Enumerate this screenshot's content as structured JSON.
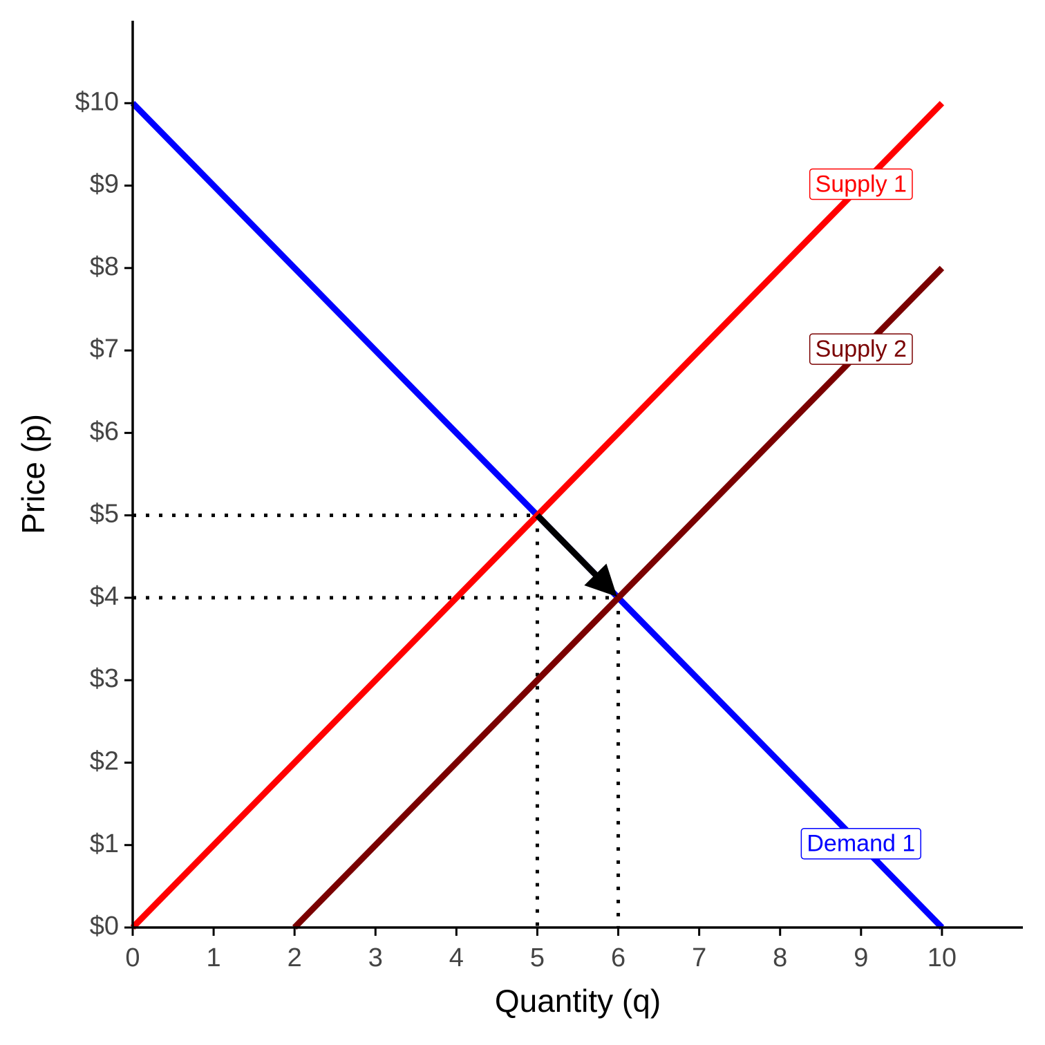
{
  "chart_data": {
    "type": "line",
    "xlabel": "Quantity (q)",
    "ylabel": "Price (p)",
    "xlim": [
      0,
      11
    ],
    "ylim": [
      0,
      11
    ],
    "xticks": [
      0,
      1,
      2,
      3,
      4,
      5,
      6,
      7,
      8,
      9,
      10
    ],
    "yticks": [
      {
        "value": 0,
        "label": "$0"
      },
      {
        "value": 1,
        "label": "$1"
      },
      {
        "value": 2,
        "label": "$2"
      },
      {
        "value": 3,
        "label": "$3"
      },
      {
        "value": 4,
        "label": "$4"
      },
      {
        "value": 5,
        "label": "$5"
      },
      {
        "value": 6,
        "label": "$6"
      },
      {
        "value": 7,
        "label": "$7"
      },
      {
        "value": 8,
        "label": "$8"
      },
      {
        "value": 9,
        "label": "$9"
      },
      {
        "value": 10,
        "label": "$10"
      }
    ],
    "series": [
      {
        "name": "Demand 1",
        "color": "#0000ff",
        "x": [
          0,
          10
        ],
        "values": [
          10,
          0
        ]
      },
      {
        "name": "Supply 1",
        "color": "#ff0000",
        "x": [
          0,
          10
        ],
        "values": [
          0,
          10
        ]
      },
      {
        "name": "Supply 2",
        "color": "#7a0000",
        "x": [
          2,
          10
        ],
        "values": [
          0,
          8
        ]
      }
    ],
    "label_positions": [
      {
        "x": 9,
        "y": 1
      },
      {
        "x": 9,
        "y": 9
      },
      {
        "x": 9,
        "y": 7
      }
    ],
    "guides": [
      {
        "x": [
          0,
          5
        ],
        "y": [
          5,
          5
        ]
      },
      {
        "x": [
          5,
          5
        ],
        "y": [
          5,
          0
        ]
      },
      {
        "x": [
          0,
          6
        ],
        "y": [
          4,
          4
        ]
      },
      {
        "x": [
          6,
          6
        ],
        "y": [
          4,
          0
        ]
      }
    ],
    "arrow": {
      "x": [
        5,
        6
      ],
      "y": [
        5,
        4
      ]
    }
  }
}
